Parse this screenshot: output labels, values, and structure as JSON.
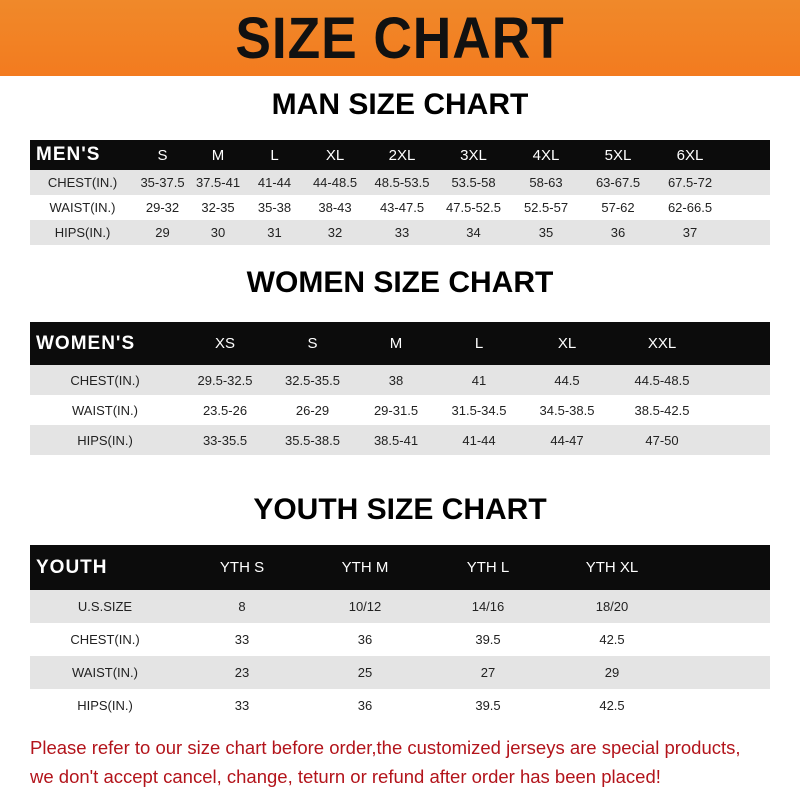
{
  "banner_title": "SIZE CHART",
  "men": {
    "title": "MAN SIZE CHART",
    "header": [
      "MEN'S",
      "S",
      "M",
      "L",
      "XL",
      "2XL",
      "3XL",
      "4XL",
      "5XL",
      "6XL"
    ],
    "rows": [
      [
        "CHEST(IN.)",
        "35-37.5",
        "37.5-41",
        "41-44",
        "44-48.5",
        "48.5-53.5",
        "53.5-58",
        "58-63",
        "63-67.5",
        "67.5-72"
      ],
      [
        "WAIST(IN.)",
        "29-32",
        "32-35",
        "35-38",
        "38-43",
        "43-47.5",
        "47.5-52.5",
        "52.5-57",
        "57-62",
        "62-66.5"
      ],
      [
        "HIPS(IN.)",
        "29",
        "30",
        "31",
        "32",
        "33",
        "34",
        "35",
        "36",
        "37"
      ]
    ]
  },
  "women": {
    "title": "WOMEN SIZE CHART",
    "header": [
      "WOMEN'S",
      "XS",
      "S",
      "M",
      "L",
      "XL",
      "XXL"
    ],
    "rows": [
      [
        "CHEST(IN.)",
        "29.5-32.5",
        "32.5-35.5",
        "38",
        "41",
        "44.5",
        "44.5-48.5"
      ],
      [
        "WAIST(IN.)",
        "23.5-26",
        "26-29",
        "29-31.5",
        "31.5-34.5",
        "34.5-38.5",
        "38.5-42.5"
      ],
      [
        "HIPS(IN.)",
        "33-35.5",
        "35.5-38.5",
        "38.5-41",
        "41-44",
        "44-47",
        "47-50"
      ]
    ]
  },
  "youth": {
    "title": "YOUTH SIZE CHART",
    "header": [
      "YOUTH",
      "YTH S",
      "YTH M",
      "YTH L",
      "YTH XL"
    ],
    "rows": [
      [
        "U.S.SIZE",
        "8",
        "10/12",
        "14/16",
        "18/20"
      ],
      [
        "CHEST(IN.)",
        "33",
        "36",
        "39.5",
        "42.5"
      ],
      [
        "WAIST(IN.)",
        "23",
        "25",
        "27",
        "29"
      ],
      [
        "HIPS(IN.)",
        "33",
        "36",
        "39.5",
        "42.5"
      ]
    ]
  },
  "note": [
    "Please refer to our size chart before order,the customized jerseys are special products,",
    "we don't accept cancel, change, teturn or refund after order has been placed!"
  ]
}
